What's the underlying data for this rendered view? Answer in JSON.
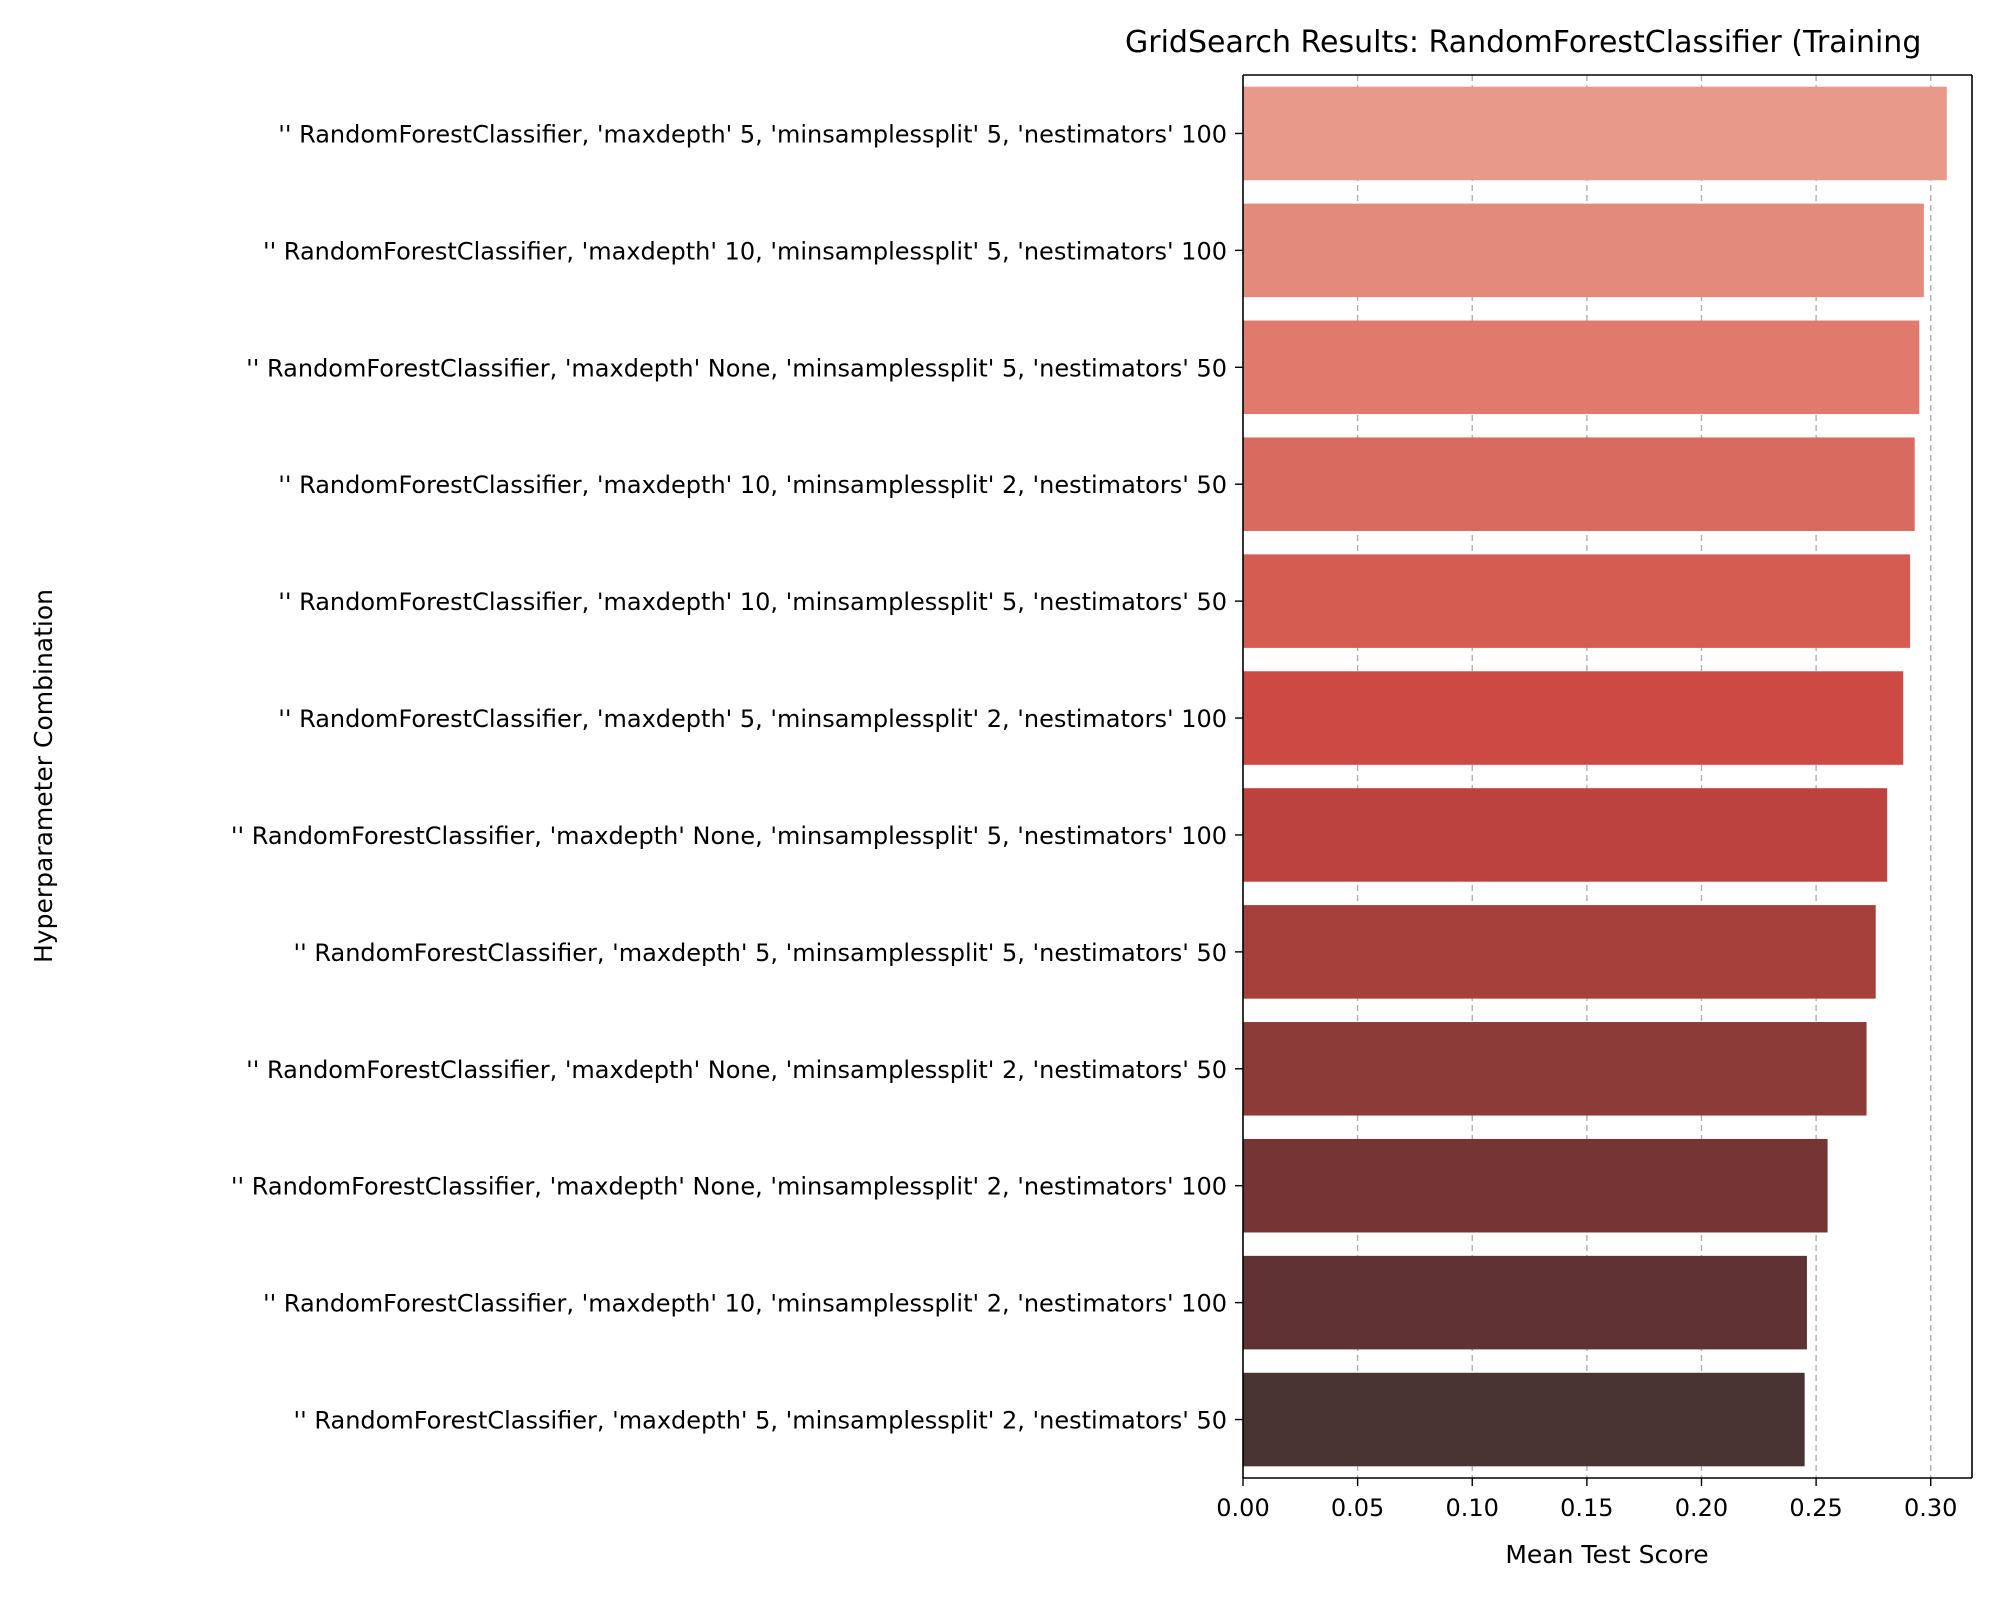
{
  "chart_data": {
    "type": "bar",
    "orientation": "horizontal",
    "title": "GridSearch Results: RandomForestClassifier (Training",
    "xlabel": "Mean Test Score",
    "ylabel": "Hyperparameter Combination",
    "xlim": [
      0.0,
      0.318
    ],
    "xticks": [
      "0.00",
      "0.05",
      "0.10",
      "0.15",
      "0.20",
      "0.25",
      "0.30"
    ],
    "grid": "x-dashed",
    "categories": [
      "'' RandomForestClassifier, 'maxdepth' 5, 'minsamplessplit' 5, 'nestimators' 100",
      "'' RandomForestClassifier, 'maxdepth' 10, 'minsamplessplit' 5, 'nestimators' 100",
      "'' RandomForestClassifier, 'maxdepth' None, 'minsamplessplit' 5, 'nestimators' 50",
      "'' RandomForestClassifier, 'maxdepth' 10, 'minsamplessplit' 2, 'nestimators' 50",
      "'' RandomForestClassifier, 'maxdepth' 10, 'minsamplessplit' 5, 'nestimators' 50",
      "'' RandomForestClassifier, 'maxdepth' 5, 'minsamplessplit' 2, 'nestimators' 100",
      "'' RandomForestClassifier, 'maxdepth' None, 'minsamplessplit' 5, 'nestimators' 100",
      "'' RandomForestClassifier, 'maxdepth' 5, 'minsamplessplit' 5, 'nestimators' 50",
      "'' RandomForestClassifier, 'maxdepth' None, 'minsamplessplit' 2, 'nestimators' 50",
      "'' RandomForestClassifier, 'maxdepth' None, 'minsamplessplit' 2, 'nestimators' 100",
      "'' RandomForestClassifier, 'maxdepth' 10, 'minsamplessplit' 2, 'nestimators' 100",
      "'' RandomForestClassifier, 'maxdepth' 5, 'minsamplessplit' 2, 'nestimators' 50"
    ],
    "values": [
      0.307,
      0.297,
      0.295,
      0.293,
      0.291,
      0.288,
      0.281,
      0.276,
      0.272,
      0.255,
      0.246,
      0.245
    ],
    "colors": [
      "#e8998a",
      "#e38a7a",
      "#e07a6d",
      "#d96a5f",
      "#d45c51",
      "#cd4a44",
      "#bc433d",
      "#a5403b",
      "#8d3b38",
      "#763535",
      "#5f3333",
      "#4a3333"
    ]
  }
}
